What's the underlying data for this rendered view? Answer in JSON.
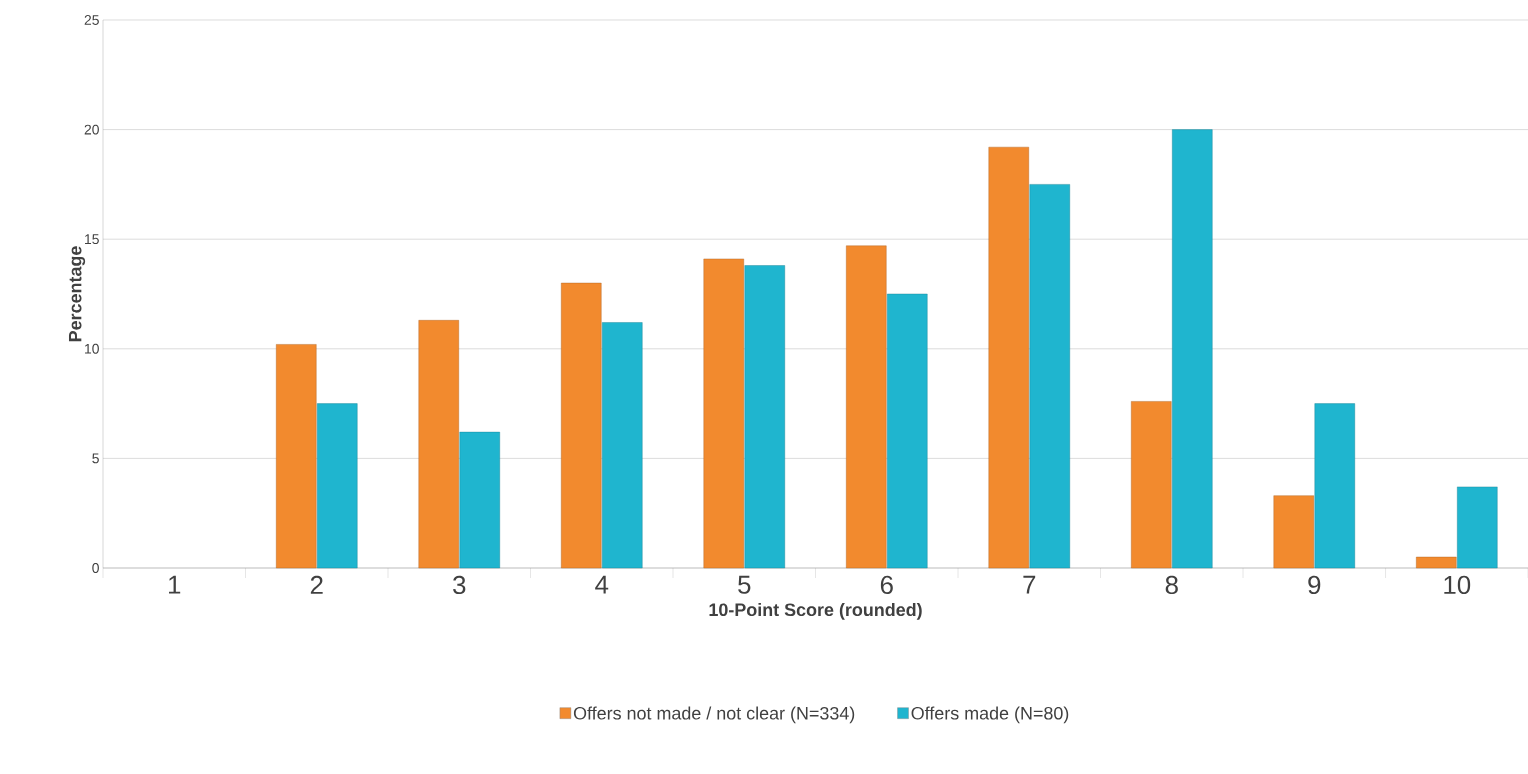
{
  "chart_data": {
    "type": "bar",
    "xlabel": "10-Point Score (rounded)",
    "ylabel": "Percentage",
    "categories": [
      "1",
      "2",
      "3",
      "4",
      "5",
      "6",
      "7",
      "8",
      "9",
      "10"
    ],
    "series": [
      {
        "name": "Offers not made / not clear (N=334)",
        "color": "#f28a2e",
        "values": [
          null,
          10.2,
          11.3,
          13.0,
          14.1,
          14.7,
          19.2,
          7.6,
          3.3,
          0.5
        ]
      },
      {
        "name": "Offers made (N=80)",
        "color": "#1fb5cf",
        "values": [
          null,
          7.5,
          6.2,
          11.2,
          13.8,
          12.5,
          17.5,
          20.0,
          7.5,
          3.7
        ]
      }
    ],
    "ylim": [
      0,
      25
    ],
    "yticks": [
      0,
      5,
      10,
      15,
      20,
      25
    ],
    "grid": "y",
    "legend": "bottom"
  }
}
